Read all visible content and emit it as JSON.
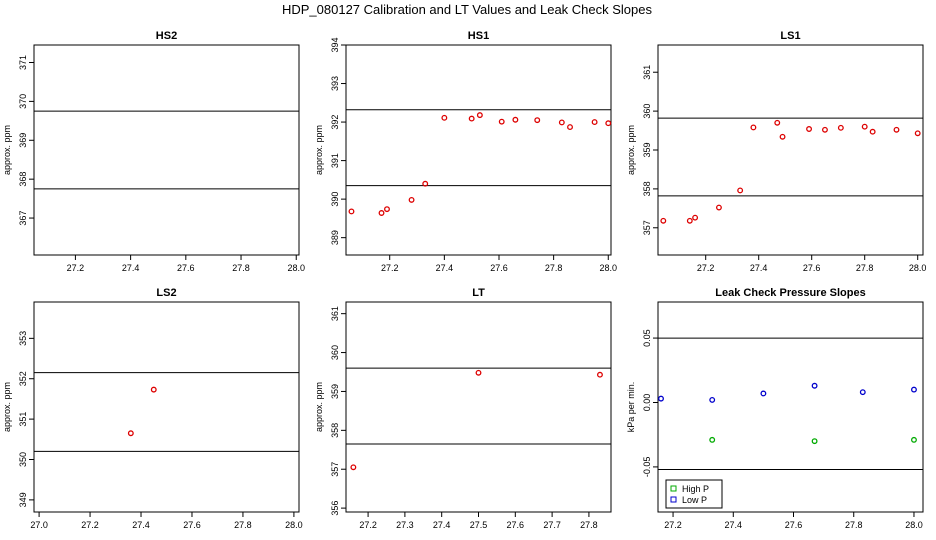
{
  "figure_title": "HDP_080127  Calibration and LT Values and Leak Check Slopes",
  "colors": {
    "red": "#dd0000",
    "green": "#00aa00",
    "blue": "#0000cc",
    "line": "#000000"
  },
  "chart_data": [
    {
      "type": "scatter",
      "title": "HS2",
      "ylabel": "approx. ppm",
      "xlabel": "",
      "xlim": [
        27.05,
        28.01
      ],
      "ylim": [
        366.05,
        371.45
      ],
      "xticks": [
        "27.2",
        "27.4",
        "27.6",
        "27.8",
        "28.0"
      ],
      "yticks": [
        "367",
        "368",
        "369",
        "370",
        "371"
      ],
      "hlines": [
        369.75,
        367.75
      ],
      "series": [
        {
          "name": "",
          "color": "red",
          "x": [],
          "y": []
        }
      ]
    },
    {
      "type": "scatter",
      "title": "HS1",
      "ylabel": "approx. ppm",
      "xlabel": "",
      "xlim": [
        27.04,
        28.01
      ],
      "ylim": [
        388.55,
        394.0
      ],
      "xticks": [
        "27.2",
        "27.4",
        "27.6",
        "27.8",
        "28.0"
      ],
      "yticks": [
        "389",
        "390",
        "391",
        "392",
        "393",
        "394"
      ],
      "hlines": [
        392.32,
        390.35
      ],
      "series": [
        {
          "name": "",
          "color": "red",
          "x": [
            27.06,
            27.17,
            27.19,
            27.28,
            27.33,
            27.4,
            27.5,
            27.53,
            27.61,
            27.66,
            27.74,
            27.83,
            27.86,
            27.95,
            28.0
          ],
          "y": [
            389.68,
            389.64,
            389.74,
            389.98,
            390.4,
            392.11,
            392.09,
            392.18,
            392.01,
            392.06,
            392.05,
            391.99,
            391.87,
            392.0,
            391.97
          ]
        }
      ]
    },
    {
      "type": "scatter",
      "title": "LS1",
      "ylabel": "approx. ppm",
      "xlabel": "",
      "xlim": [
        27.02,
        28.02
      ],
      "ylim": [
        356.3,
        361.7
      ],
      "xticks": [
        "27.2",
        "27.4",
        "27.6",
        "27.8",
        "28.0"
      ],
      "yticks": [
        "357",
        "358",
        "359",
        "360",
        "361"
      ],
      "hlines": [
        359.82,
        357.82
      ],
      "series": [
        {
          "name": "",
          "color": "red",
          "x": [
            27.04,
            27.14,
            27.16,
            27.25,
            27.33,
            27.38,
            27.47,
            27.49,
            27.59,
            27.65,
            27.71,
            27.8,
            27.83,
            27.92,
            28.0
          ],
          "y": [
            357.18,
            357.18,
            357.26,
            357.52,
            357.96,
            359.58,
            359.7,
            359.34,
            359.54,
            359.52,
            359.57,
            359.6,
            359.47,
            359.52,
            359.43
          ]
        }
      ]
    },
    {
      "type": "scatter",
      "title": "LS2",
      "ylabel": "approx. ppm",
      "xlabel": "",
      "xlim": [
        26.98,
        28.02
      ],
      "ylim": [
        348.7,
        353.9
      ],
      "xticks": [
        "27.0",
        "27.2",
        "27.4",
        "27.6",
        "27.8",
        "28.0"
      ],
      "yticks": [
        "349",
        "350",
        "351",
        "352",
        "353"
      ],
      "hlines": [
        352.15,
        350.2
      ],
      "series": [
        {
          "name": "",
          "color": "red",
          "x": [
            27.36,
            27.45
          ],
          "y": [
            350.65,
            351.73
          ]
        }
      ]
    },
    {
      "type": "scatter",
      "title": "LT",
      "ylabel": "approx. ppm",
      "xlabel": "",
      "xlim": [
        27.14,
        27.86
      ],
      "ylim": [
        355.9,
        361.3
      ],
      "xticks": [
        "27.2",
        "27.3",
        "27.4",
        "27.5",
        "27.6",
        "27.7",
        "27.8"
      ],
      "yticks": [
        "356",
        "357",
        "358",
        "359",
        "360",
        "361"
      ],
      "hlines": [
        359.6,
        357.65
      ],
      "series": [
        {
          "name": "",
          "color": "red",
          "x": [
            27.16,
            27.5,
            27.83
          ],
          "y": [
            357.05,
            359.48,
            359.43
          ]
        }
      ]
    },
    {
      "type": "scatter",
      "title": "Leak Check Pressure Slopes",
      "ylabel": "kPa per min.",
      "xlabel": "",
      "xlim": [
        27.15,
        28.03
      ],
      "ylim": [
        -0.085,
        0.078
      ],
      "xticks": [
        "27.2",
        "27.4",
        "27.6",
        "27.8",
        "28.0"
      ],
      "yticks": [
        "-0.05",
        "0.00",
        "0.05"
      ],
      "hlines": [
        0.05,
        -0.052
      ],
      "legend": {
        "position": "bottom-left",
        "entries": [
          "High P",
          "Low P"
        ]
      },
      "series": [
        {
          "name": "High P",
          "color": "green",
          "x": [
            27.33,
            27.67,
            28.0
          ],
          "y": [
            -0.029,
            -0.03,
            -0.029
          ]
        },
        {
          "name": "Low P",
          "color": "blue",
          "x": [
            27.16,
            27.33,
            27.5,
            27.67,
            27.83,
            28.0
          ],
          "y": [
            0.003,
            0.002,
            0.007,
            0.013,
            0.008,
            0.01
          ]
        }
      ]
    }
  ]
}
